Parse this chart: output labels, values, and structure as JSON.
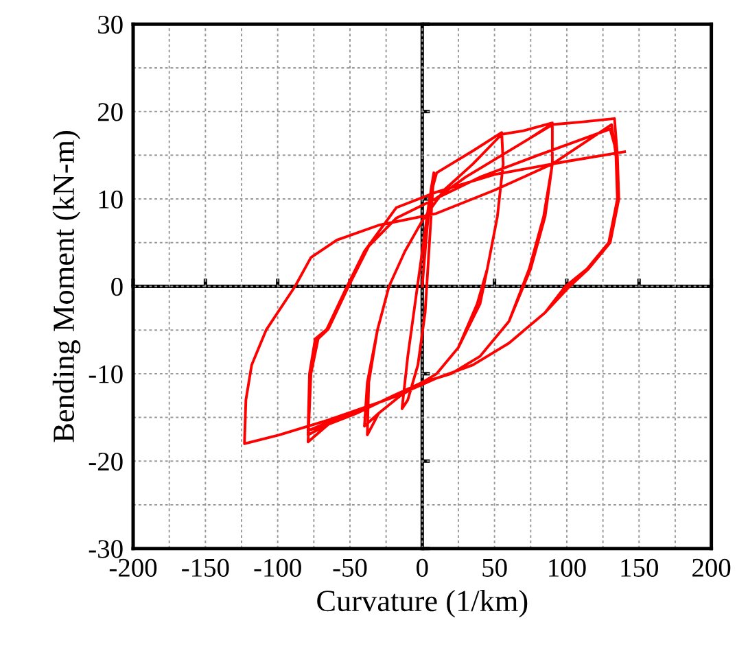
{
  "chart_data": {
    "type": "line",
    "xlabel": "Curvature (1/km)",
    "ylabel": "Bending Moment (kN-m)",
    "xlim": [
      -200,
      200
    ],
    "ylim": [
      -30,
      30
    ],
    "xticks": [
      -200,
      {
        "value": -175,
        "label": null
      },
      -150,
      {
        "value": -125,
        "label": null
      },
      -100,
      {
        "value": -75,
        "label": null
      },
      -50,
      {
        "value": -25,
        "label": null
      },
      0,
      {
        "value": 25,
        "label": null
      },
      50,
      {
        "value": 75,
        "label": null
      },
      100,
      {
        "value": 125,
        "label": null
      },
      150,
      {
        "value": 175,
        "label": null
      },
      200
    ],
    "yticks": [
      -30,
      {
        "value": -25,
        "label": null
      },
      -20,
      {
        "value": -15,
        "label": null
      },
      -10,
      {
        "value": -5,
        "label": null
      },
      0,
      {
        "value": 5,
        "label": null
      },
      10,
      {
        "value": 15,
        "label": null
      },
      20,
      {
        "value": 25,
        "label": null
      },
      30
    ],
    "grid": true,
    "marker": "none",
    "line_style": "solid",
    "series": [
      {
        "color": "#ff0000",
        "x": [
          0,
          3,
          6,
          8,
          5,
          2,
          -3,
          -10,
          -14,
          -10,
          -5,
          0,
          5,
          10,
          20,
          35,
          55,
          56,
          52,
          45,
          40,
          25,
          10,
          0,
          -15,
          -30,
          -40,
          -38,
          -31,
          -23,
          -12,
          0,
          15,
          35,
          55,
          56,
          52,
          45,
          38,
          25,
          10,
          0,
          -15,
          -30,
          -38,
          -37,
          -31,
          -23,
          -12,
          0,
          15,
          35,
          55,
          70,
          90,
          90,
          85,
          75,
          60,
          40,
          20,
          0,
          -20,
          -45,
          -65,
          -79,
          -77,
          -72,
          -65,
          -51,
          -37,
          -18,
          9,
          30,
          55,
          75,
          90,
          90,
          84,
          74,
          60,
          40,
          20,
          0,
          -20,
          -45,
          -65,
          -79,
          -77,
          -72,
          -65,
          -51,
          -37,
          -18,
          9,
          30,
          55,
          75,
          89,
          110,
          133,
          135,
          136,
          130,
          115,
          102,
          85,
          60,
          35,
          10,
          -20,
          -65,
          -99,
          -123,
          -122,
          -118,
          -108,
          -88,
          -77,
          -59,
          -30,
          9,
          50,
          90,
          131,
          134,
          135,
          130,
          115,
          100,
          85,
          60,
          35,
          10,
          -20,
          -50,
          -79,
          -78,
          -73,
          -65,
          -51,
          -37,
          -18,
          9,
          40,
          80,
          130,
          135,
          135,
          129,
          114,
          99,
          85,
          60,
          35,
          10,
          -20,
          -50,
          -79,
          -78,
          -74,
          -66,
          -52,
          -40,
          -18,
          10,
          50,
          100,
          140
        ],
        "values": [
          0,
          6,
          11,
          13,
          5,
          -3,
          -9,
          -13,
          -14,
          -8,
          -2,
          4,
          10,
          13,
          14,
          15.5,
          17.6,
          14,
          8,
          2,
          -2,
          -7,
          -10,
          -11,
          -12.5,
          -14.5,
          -16,
          -11,
          -5,
          0,
          4,
          7.5,
          11,
          14,
          17.4,
          14,
          8,
          2,
          -2,
          -7,
          -10,
          -11,
          -12.5,
          -14.5,
          -17,
          -11,
          -5,
          0,
          4,
          7.5,
          11,
          14,
          17.4,
          17.8,
          18.7,
          14,
          8,
          2,
          -4,
          -8,
          -10,
          -11,
          -12.5,
          -14.5,
          -15.8,
          -16.5,
          -10,
          -6,
          -4.9,
          0,
          4.6,
          7.8,
          10,
          12.5,
          15,
          17,
          18.5,
          14,
          8,
          2,
          -4,
          -8,
          -10,
          -11,
          -12.5,
          -14.5,
          -15.8,
          -17.8,
          -10,
          -6,
          -4.9,
          0,
          4.6,
          7.8,
          10,
          12.5,
          15,
          17,
          18.5,
          18.8,
          19.2,
          15,
          10,
          5,
          2,
          0,
          -3,
          -6.5,
          -9,
          -10.5,
          -12.7,
          -15.3,
          -17,
          -18,
          -13,
          -9,
          -5,
          0,
          3.3,
          5.3,
          7,
          8.3,
          11,
          14,
          18.5,
          15,
          10,
          5,
          2,
          0,
          -3,
          -6.5,
          -9,
          -10.5,
          -12.7,
          -14.5,
          -16.5,
          -10,
          -6,
          -4.9,
          0,
          4.6,
          7.8,
          10,
          12.5,
          15,
          18,
          15,
          10,
          5,
          2,
          0,
          -3,
          -6.5,
          -9,
          -10.5,
          -12.7,
          -14.5,
          -17,
          -10,
          -6,
          -4.9,
          0,
          4,
          9,
          10.8,
          12.8,
          14.3,
          15.4
        ]
      }
    ]
  }
}
